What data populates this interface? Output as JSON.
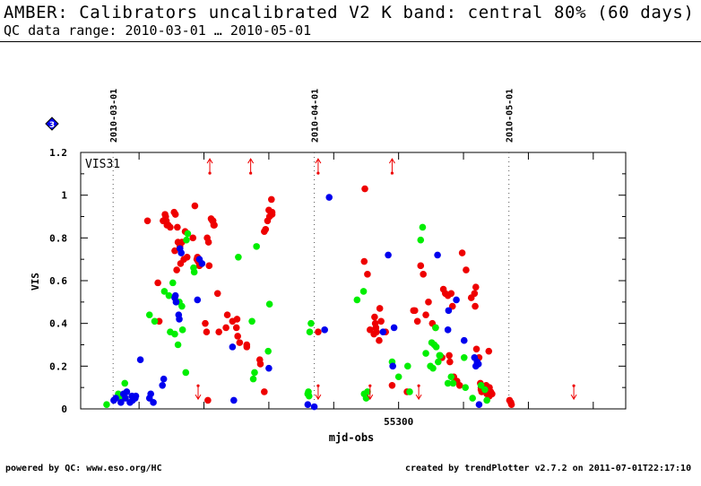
{
  "header": {
    "title": "AMBER: Calibrators uncalibrated V2 K band: central 80% (60 days)",
    "subtitle": "QC data range: 2010-03-01 … 2010-05-01"
  },
  "footer": {
    "left": "powered by QC: www.eso.org/HC",
    "right": "created by trendPlotter v2.7.2 on 2011-07-01T22:17:10"
  },
  "badge": {
    "text": "3",
    "color": "#0000ee"
  },
  "chart_data": {
    "type": "scatter",
    "panel_label": "VIS31",
    "xlabel": "mjd-obs",
    "ylabel": "VIS",
    "xlim": [
      55251,
      55335
    ],
    "ylim": [
      0,
      1.2
    ],
    "yticks": [
      0,
      0.2,
      0.4,
      0.6,
      0.8,
      1,
      1.2
    ],
    "ytick_labels": [
      "0",
      "0.2",
      "0.4",
      "0.6",
      "0.8",
      "1",
      "1.2"
    ],
    "xticks": [
      55300
    ],
    "xtick_labels": [
      "55300"
    ],
    "date_markers": [
      {
        "mjd": 55256,
        "label": "2010-03-01"
      },
      {
        "mjd": 55287,
        "label": "2010-04-01"
      },
      {
        "mjd": 55317,
        "label": "2010-05-01"
      }
    ],
    "colors": {
      "red": "#ee0000",
      "green": "#00ee00",
      "blue": "#0000ee"
    },
    "series": [
      {
        "color": "red",
        "x": [
          55261.3,
          55262.9,
          55263.1,
          55263.7,
          55264.0,
          55264.1,
          55264.2,
          55264.3,
          55264.5,
          55264.8,
          55265.4,
          55265.5,
          55265.6,
          55265.8,
          55265.9,
          55266.0,
          55266.3,
          55266.4,
          55266.6,
          55266.9,
          55267.1,
          55267.4,
          55268.3,
          55268.6,
          55268.9,
          55269.0,
          55269.1,
          55269.3,
          55270.2,
          55270.4,
          55270.5,
          55270.6,
          55270.7,
          55270.8,
          55271.1,
          55271.3,
          55271.4,
          55271.5,
          55271.6,
          55272.1,
          55272.3,
          55273.4,
          55273.6,
          55274.4,
          55275.0,
          55275.1,
          55275.2,
          55275.5,
          55276.6,
          55276.6,
          55278.6,
          55278.7,
          55279.3,
          55279.3,
          55279.5,
          55279.8,
          55280.0,
          55280.1,
          55280.4,
          55280.5,
          55280.5,
          55287.6,
          55294.7,
          55294.8,
          55295.2,
          55295.6,
          55296.2,
          55296.3,
          55296.4,
          55296.5,
          55296.6,
          55297.0,
          55297.1,
          55297.3,
          55298.0,
          55299.0,
          55301.3,
          55302.3,
          55302.5,
          55302.9,
          55303.4,
          55303.8,
          55304.2,
          55304.6,
          55305.2,
          55305.7,
          55306.7,
          55306.9,
          55307.2,
          55307.6,
          55307.8,
          55307.9,
          55308.1,
          55308.3,
          55308.5,
          55309.0,
          55309.4,
          55309.8,
          55310.4,
          55311.2,
          55311.7,
          55311.8,
          55311.9,
          55312.0,
          55312.4,
          55312.6,
          55312.7,
          55312.7,
          55312.8,
          55313.5,
          55313.6,
          55313.9,
          55314.0,
          55314.0,
          55314.2,
          55314.4,
          55317.1,
          55317.3,
          55317.4
        ],
        "y": [
          0.88,
          0.59,
          0.41,
          0.88,
          0.91,
          0.9,
          0.88,
          0.86,
          0.86,
          0.85,
          0.92,
          0.74,
          0.91,
          0.65,
          0.85,
          0.78,
          0.76,
          0.68,
          0.78,
          0.7,
          0.83,
          0.71,
          0.8,
          0.95,
          0.7,
          0.71,
          0.69,
          0.67,
          0.4,
          0.36,
          0.8,
          0.04,
          0.78,
          0.67,
          0.89,
          0.88,
          0.88,
          0.86,
          0.86,
          0.54,
          0.36,
          0.38,
          0.44,
          0.41,
          0.38,
          0.42,
          0.34,
          0.31,
          0.29,
          0.3,
          0.23,
          0.21,
          0.08,
          0.83,
          0.84,
          0.88,
          0.93,
          0.9,
          0.98,
          0.91,
          0.92,
          0.36,
          0.69,
          1.03,
          0.63,
          0.37,
          0.35,
          0.43,
          0.4,
          0.38,
          0.36,
          0.32,
          0.47,
          0.41,
          0.36,
          0.11,
          0.08,
          0.46,
          0.46,
          0.41,
          0.67,
          0.63,
          0.44,
          0.5,
          0.4,
          0.38,
          0.24,
          0.56,
          0.54,
          0.53,
          0.25,
          0.22,
          0.54,
          0.48,
          0.15,
          0.13,
          0.11,
          0.73,
          0.65,
          0.52,
          0.54,
          0.48,
          0.57,
          0.28,
          0.24,
          0.12,
          0.1,
          0.09,
          0.08,
          0.11,
          0.07,
          0.27,
          0.1,
          0.06,
          0.08,
          0.07,
          0.04,
          0.03,
          0.02
        ]
      },
      {
        "color": "green",
        "x": [
          55255.0,
          55256.8,
          55257.3,
          55257.8,
          55261.6,
          55262.4,
          55263.9,
          55264.6,
          55264.8,
          55265.2,
          55265.5,
          55266.0,
          55266.2,
          55266.6,
          55266.7,
          55267.2,
          55267.3,
          55267.5,
          55268.4,
          55268.5,
          55275.3,
          55277.4,
          55277.6,
          55277.8,
          55278.1,
          55279.9,
          55280.1,
          55286.0,
          55286.1,
          55286.2,
          55286.3,
          55286.5,
          55293.6,
          55294.6,
          55294.7,
          55295.0,
          55295.2,
          55299.0,
          55300.0,
          55301.4,
          55301.7,
          55303.4,
          55303.7,
          55304.2,
          55304.9,
          55305.1,
          55305.3,
          55305.5,
          55305.7,
          55305.8,
          55306.1,
          55306.3,
          55306.4,
          55307.6,
          55308.1,
          55308.4,
          55310.1,
          55310.3,
          55311.4,
          55312.7,
          55313.3,
          55313.6
        ],
        "y": [
          0.02,
          0.07,
          0.05,
          0.12,
          0.44,
          0.41,
          0.55,
          0.53,
          0.36,
          0.59,
          0.35,
          0.3,
          0.5,
          0.48,
          0.37,
          0.17,
          0.79,
          0.82,
          0.66,
          0.64,
          0.71,
          0.41,
          0.14,
          0.17,
          0.76,
          0.27,
          0.49,
          0.07,
          0.08,
          0.06,
          0.36,
          0.4,
          0.51,
          0.55,
          0.07,
          0.05,
          0.08,
          0.22,
          0.15,
          0.2,
          0.08,
          0.79,
          0.85,
          0.26,
          0.2,
          0.31,
          0.19,
          0.3,
          0.38,
          0.29,
          0.22,
          0.25,
          0.25,
          0.12,
          0.15,
          0.12,
          0.24,
          0.1,
          0.05,
          0.11,
          0.09,
          0.04
        ]
      },
      {
        "color": "blue",
        "x": [
          55256.1,
          55256.4,
          55257.2,
          55257.6,
          55257.9,
          55258.1,
          55258.6,
          55258.9,
          55259.0,
          55259.4,
          55259.5,
          55260.2,
          55261.6,
          55261.8,
          55262.2,
          55263.6,
          55263.8,
          55265.5,
          55265.6,
          55265.7,
          55266.1,
          55266.2,
          55266.3,
          55266.5,
          55269.0,
          55269.3,
          55269.7,
          55274.4,
          55274.6,
          55280.0,
          55286.0,
          55287.0,
          55288.6,
          55289.3,
          55297.6,
          55298.4,
          55299.1,
          55299.3,
          55306.0,
          55307.6,
          55307.7,
          55308.9,
          55310.1,
          55311.7,
          55311.9,
          55312.1,
          55312.3,
          55312.4
        ],
        "y": [
          0.04,
          0.05,
          0.03,
          0.07,
          0.05,
          0.08,
          0.03,
          0.06,
          0.04,
          0.05,
          0.06,
          0.23,
          0.05,
          0.07,
          0.03,
          0.11,
          0.14,
          0.52,
          0.53,
          0.5,
          0.44,
          0.42,
          0.75,
          0.73,
          0.51,
          0.7,
          0.68,
          0.29,
          0.04,
          0.19,
          0.02,
          0.01,
          0.37,
          0.99,
          0.36,
          0.72,
          0.2,
          0.38,
          0.72,
          0.37,
          0.46,
          0.51,
          0.32,
          0.24,
          0.2,
          0.22,
          0.21,
          0.02
        ]
      }
    ],
    "arrows": [
      {
        "color": "red",
        "dir": "up",
        "x": 55270.9,
        "y": 1.12
      },
      {
        "color": "red",
        "dir": "up",
        "x": 55277.2,
        "y": 1.12
      },
      {
        "color": "red",
        "dir": "up",
        "x": 55287.6,
        "y": 1.12
      },
      {
        "color": "red",
        "dir": "up",
        "x": 55299.0,
        "y": 1.12
      },
      {
        "color": "red",
        "dir": "down",
        "x": 55269.1,
        "y": 0.1
      },
      {
        "color": "red",
        "dir": "down",
        "x": 55287.6,
        "y": 0.1
      },
      {
        "color": "red",
        "dir": "down",
        "x": 55295.6,
        "y": 0.1
      },
      {
        "color": "red",
        "dir": "down",
        "x": 55303.1,
        "y": 0.1
      },
      {
        "color": "red",
        "dir": "down",
        "x": 55327.0,
        "y": 0.1
      }
    ]
  }
}
